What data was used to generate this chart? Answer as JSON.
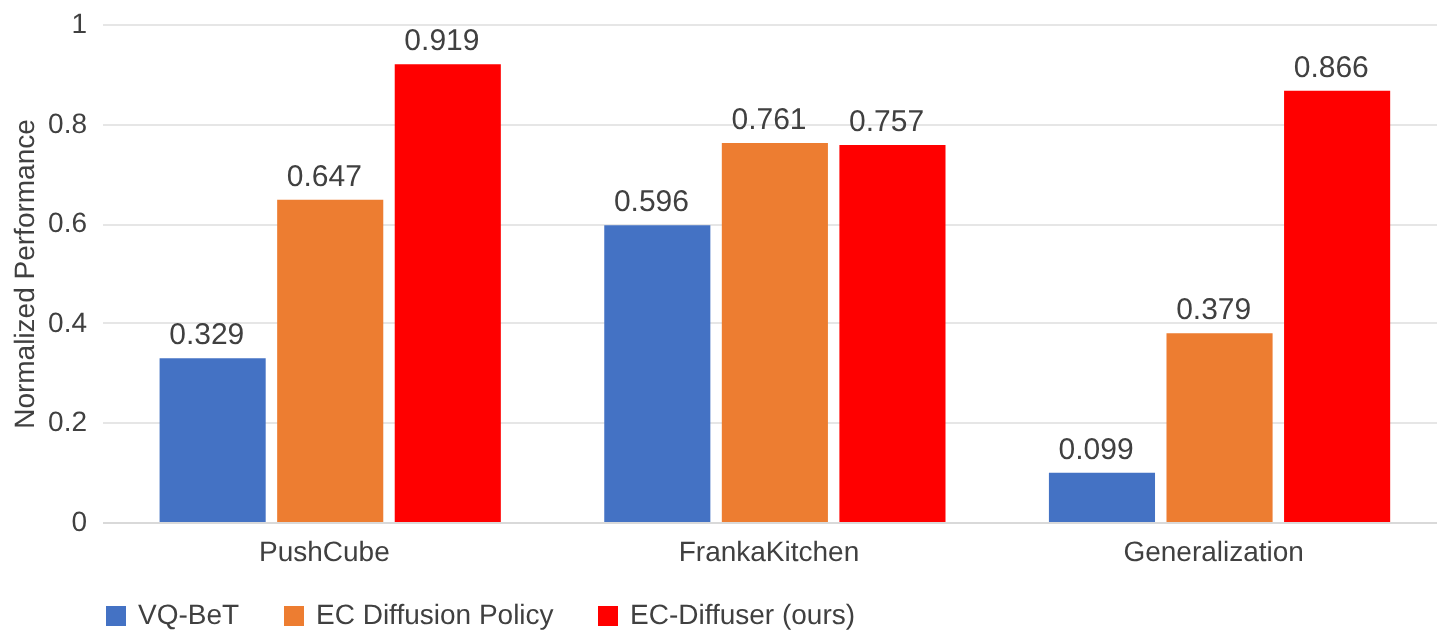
{
  "chart_data": {
    "type": "bar",
    "ylabel": "Normalized Performance",
    "categories": [
      "PushCube",
      "FrankaKitchen",
      "Generalization"
    ],
    "series": [
      {
        "name": "VQ-BeT",
        "color": "#4472c4",
        "values": [
          0.329,
          0.596,
          0.099
        ]
      },
      {
        "name": "EC Diffusion Policy",
        "color": "#ed7d31",
        "values": [
          0.647,
          0.761,
          0.379
        ]
      },
      {
        "name": "EC-Diffuser (ours)",
        "color": "#ff0000",
        "values": [
          0.919,
          0.757,
          0.866
        ]
      }
    ],
    "ylim": [
      0,
      1
    ],
    "yticks": [
      0,
      0.2,
      0.4,
      0.6,
      0.8,
      1
    ],
    "grid": "y",
    "legend": "bottom",
    "data_labels": true
  }
}
